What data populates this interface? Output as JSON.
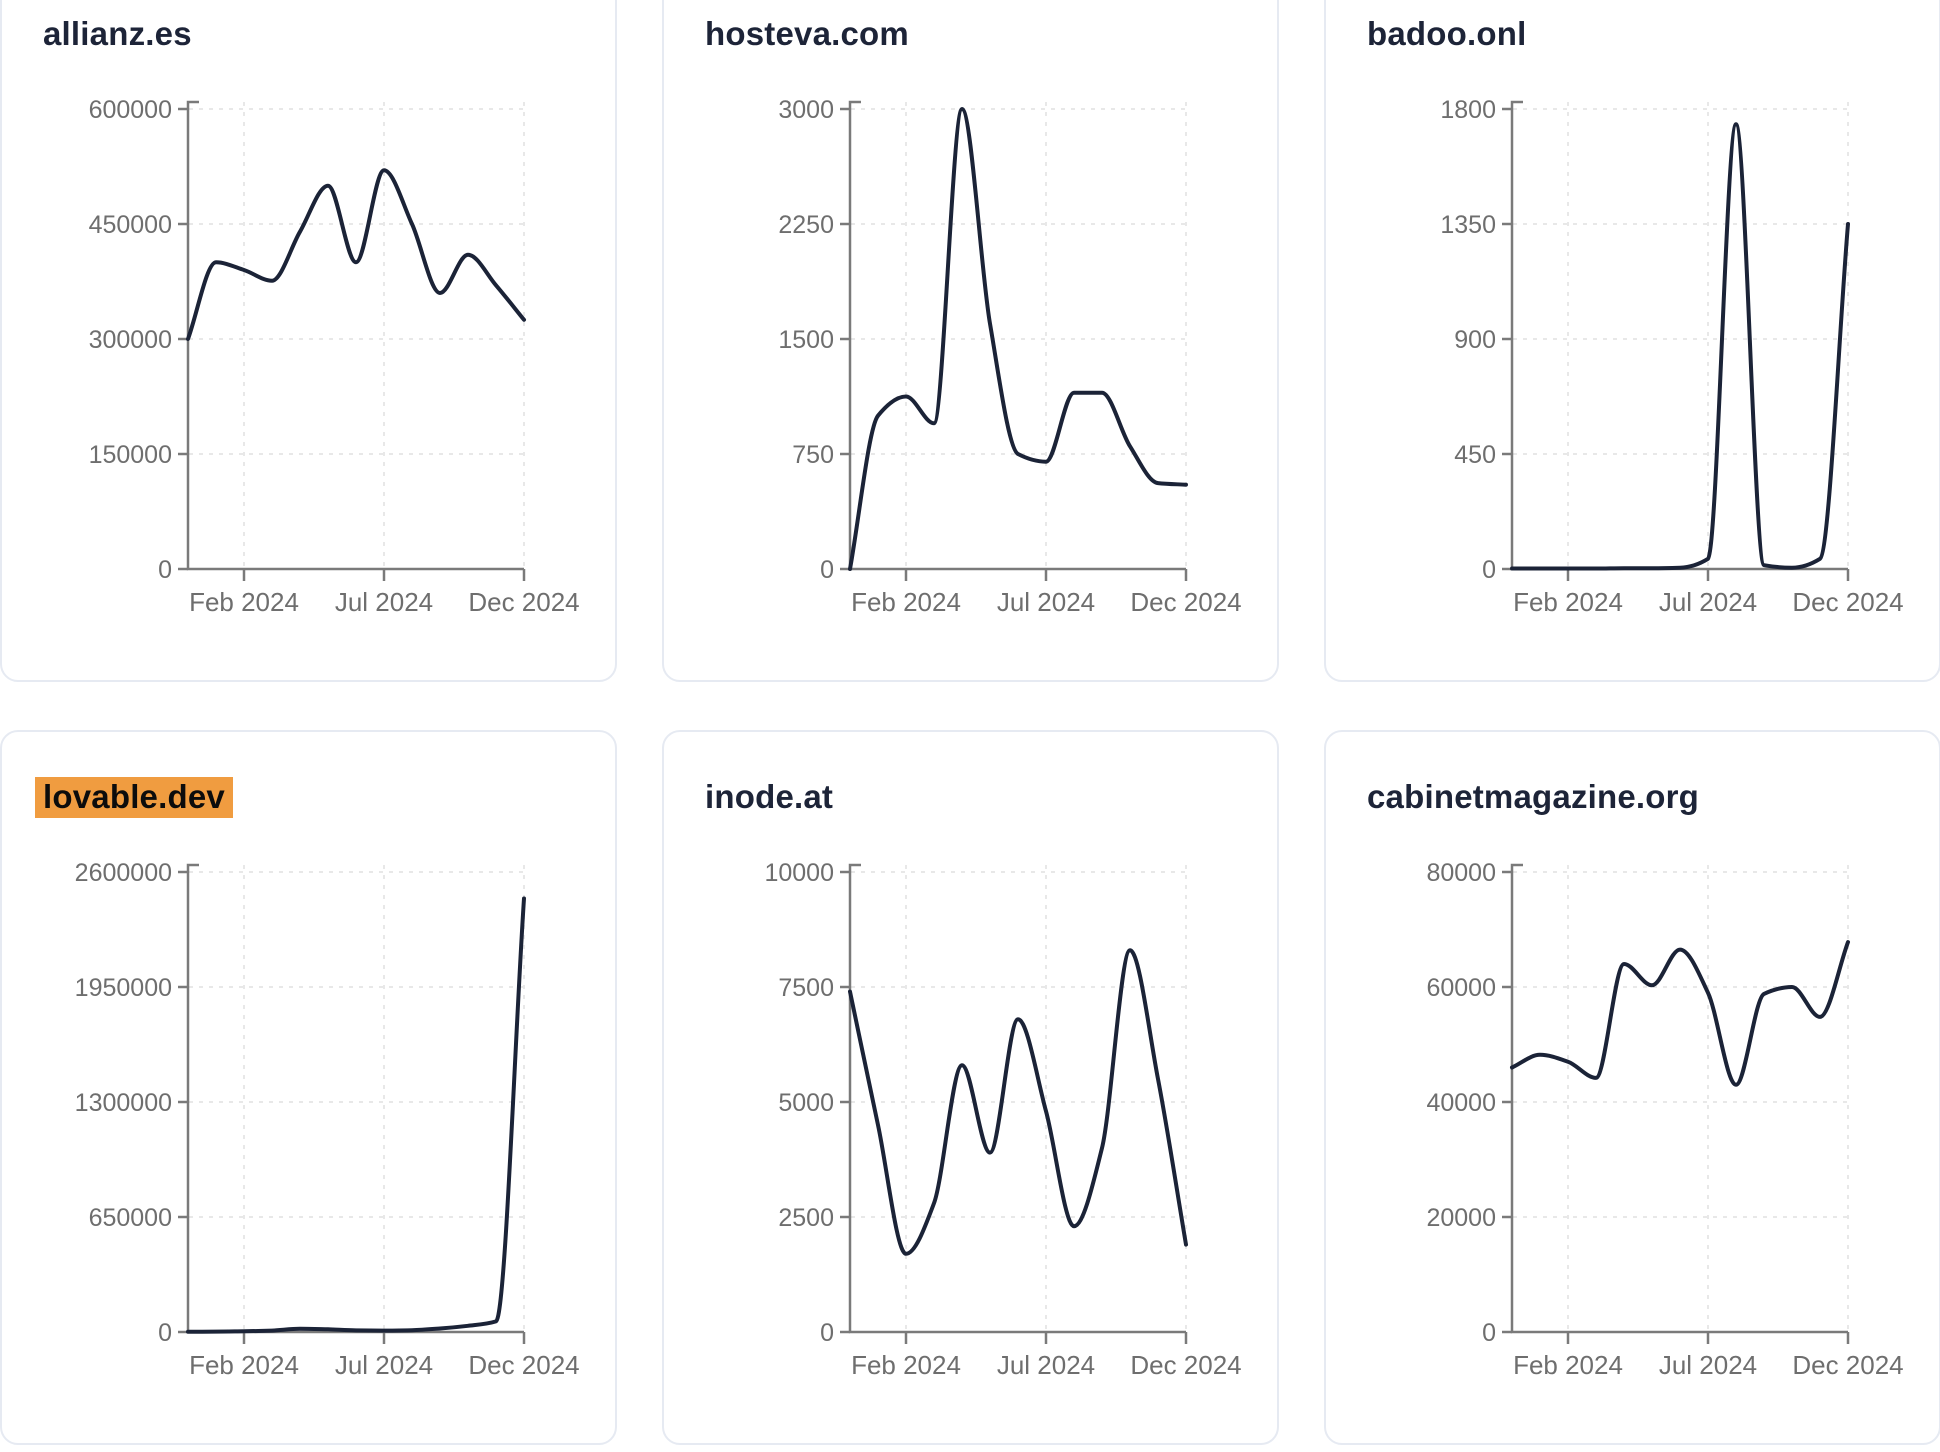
{
  "page": {
    "background": "#ffffff"
  },
  "card": {
    "border_color": "#e6eaf2",
    "background": "#ffffff",
    "title_color": "#1d2438",
    "highlight_bg": "#f09c40",
    "highlight_text": "#0c0c0c"
  },
  "axis": {
    "line_color": "#7a7a7a",
    "label_color": "#6e6e6e",
    "grid_color": "#e8e8e8",
    "grid_style": "dashed"
  },
  "line_color": "#1b2337",
  "months": [
    "Dec 2023",
    "Jan 2024",
    "Feb 2024",
    "Mar 2024",
    "Apr 2024",
    "May 2024",
    "Jun 2024",
    "Jul 2024",
    "Aug 2024",
    "Sep 2024",
    "Oct 2024",
    "Nov 2024",
    "Dec 2024"
  ],
  "chart_data": [
    {
      "type": "line",
      "title": "allianz.es",
      "highlighted": false,
      "x": [
        "Dec 2023",
        "Jan 2024",
        "Feb 2024",
        "Mar 2024",
        "Apr 2024",
        "May 2024",
        "Jun 2024",
        "Jul 2024",
        "Aug 2024",
        "Sep 2024",
        "Oct 2024",
        "Nov 2024",
        "Dec 2024"
      ],
      "values": [
        300000,
        400000,
        390000,
        376000,
        440000,
        500000,
        400000,
        520000,
        450000,
        360000,
        410000,
        370000,
        325000
      ],
      "y_ticks": [
        0,
        150000,
        300000,
        450000,
        600000
      ],
      "ylim": [
        0,
        600000
      ],
      "x_ticks": [
        "Feb 2024",
        "Jul 2024",
        "Dec 2024"
      ],
      "grid": "dashed",
      "legend": "none"
    },
    {
      "type": "line",
      "title": "hosteva.com",
      "highlighted": false,
      "x": [
        "Dec 2023",
        "Jan 2024",
        "Feb 2024",
        "Mar 2024",
        "Apr 2024",
        "May 2024",
        "Jun 2024",
        "Jul 2024",
        "Aug 2024",
        "Sep 2024",
        "Oct 2024",
        "Nov 2024",
        "Dec 2024"
      ],
      "values": [
        0,
        1000,
        1125,
        950,
        3000,
        1600,
        750,
        700,
        1150,
        1150,
        800,
        560,
        550
      ],
      "y_ticks": [
        0,
        750,
        1500,
        2250,
        3000
      ],
      "ylim": [
        0,
        3000
      ],
      "x_ticks": [
        "Feb 2024",
        "Jul 2024",
        "Dec 2024"
      ],
      "grid": "dashed",
      "legend": "none"
    },
    {
      "type": "line",
      "title": "badoo.onl",
      "highlighted": false,
      "x": [
        "Dec 2023",
        "Jan 2024",
        "Feb 2024",
        "Mar 2024",
        "Apr 2024",
        "May 2024",
        "Jun 2024",
        "Jul 2024",
        "Aug 2024",
        "Sep 2024",
        "Oct 2024",
        "Nov 2024",
        "Dec 2024"
      ],
      "values": [
        2,
        2,
        2,
        2,
        3,
        3,
        5,
        40,
        1740,
        15,
        5,
        40,
        1350
      ],
      "y_ticks": [
        0,
        450,
        900,
        1350,
        1800
      ],
      "ylim": [
        0,
        1800
      ],
      "x_ticks": [
        "Feb 2024",
        "Jul 2024",
        "Dec 2024"
      ],
      "grid": "dashed",
      "legend": "none"
    },
    {
      "type": "line",
      "title": "lovable.dev",
      "highlighted": true,
      "x": [
        "Dec 2023",
        "Jan 2024",
        "Feb 2024",
        "Mar 2024",
        "Apr 2024",
        "May 2024",
        "Jun 2024",
        "Jul 2024",
        "Aug 2024",
        "Sep 2024",
        "Oct 2024",
        "Nov 2024",
        "Dec 2024"
      ],
      "values": [
        1000,
        2000,
        4000,
        8000,
        18000,
        15000,
        9000,
        8000,
        10000,
        20000,
        35000,
        60000,
        2450000
      ],
      "y_ticks": [
        0,
        650000,
        1300000,
        1950000,
        2600000
      ],
      "ylim": [
        0,
        2600000
      ],
      "x_ticks": [
        "Feb 2024",
        "Jul 2024",
        "Dec 2024"
      ],
      "grid": "dashed",
      "legend": "none"
    },
    {
      "type": "line",
      "title": "inode.at",
      "highlighted": false,
      "x": [
        "Dec 2023",
        "Jan 2024",
        "Feb 2024",
        "Mar 2024",
        "Apr 2024",
        "May 2024",
        "Jun 2024",
        "Jul 2024",
        "Aug 2024",
        "Sep 2024",
        "Oct 2024",
        "Nov 2024",
        "Dec 2024"
      ],
      "values": [
        7400,
        4500,
        1700,
        2800,
        5800,
        3900,
        6800,
        4800,
        2300,
        4000,
        8300,
        5500,
        1900
      ],
      "y_ticks": [
        0,
        2500,
        5000,
        7500,
        10000
      ],
      "ylim": [
        0,
        10000
      ],
      "x_ticks": [
        "Feb 2024",
        "Jul 2024",
        "Dec 2024"
      ],
      "grid": "dashed",
      "legend": "none"
    },
    {
      "type": "line",
      "title": "cabinetmagazine.org",
      "highlighted": false,
      "x": [
        "Dec 2023",
        "Jan 2024",
        "Feb 2024",
        "Mar 2024",
        "Apr 2024",
        "May 2024",
        "Jun 2024",
        "Jul 2024",
        "Aug 2024",
        "Sep 2024",
        "Oct 2024",
        "Nov 2024",
        "Dec 2024"
      ],
      "values": [
        46000,
        48200,
        47000,
        44200,
        64000,
        60300,
        66500,
        59000,
        43000,
        58800,
        60000,
        54800,
        67800
      ],
      "y_ticks": [
        0,
        20000,
        40000,
        60000,
        80000
      ],
      "ylim": [
        0,
        80000
      ],
      "x_ticks": [
        "Feb 2024",
        "Jul 2024",
        "Dec 2024"
      ],
      "grid": "dashed",
      "legend": "none"
    }
  ]
}
